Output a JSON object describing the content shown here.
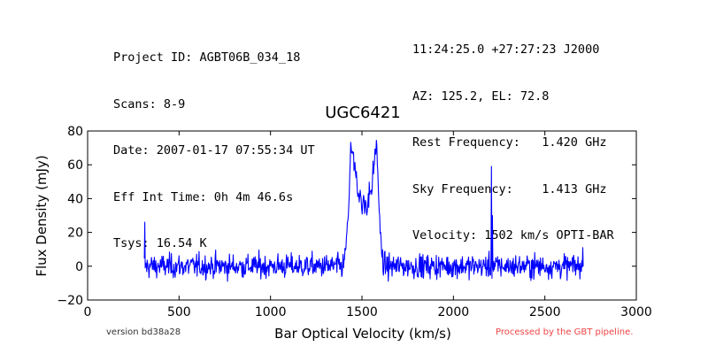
{
  "header": {
    "left": [
      "Project ID: AGBT06B_034_18",
      "Scans: 8-9",
      "Date: 2007-01-17 07:55:34 UT",
      "Eff Int Time: 0h 4m 46.6s",
      "Tsys: 16.54 K"
    ],
    "right": [
      "11:24:25.0 +27:27:23 J2000",
      "AZ: 125.2, EL: 72.8",
      "Rest Frequency:   1.420 GHz",
      "Sky Frequency:    1.413 GHz",
      "Velocity: 1502 km/s OPTI-BAR"
    ]
  },
  "footer": {
    "version": "version bd38a28",
    "pipeline": "Processed by the GBT pipeline."
  },
  "colors": {
    "series": "#0000ff",
    "pipeline_note": "#ee4444"
  },
  "chart_data": {
    "type": "line",
    "title": "UGC6421",
    "xlabel": "Bar Optical Velocity (km/s)",
    "ylabel": "Flux Density (mJy)",
    "xlim": [
      0,
      3000
    ],
    "ylim": [
      -20,
      80
    ],
    "xticks": [
      0,
      500,
      1000,
      1500,
      2000,
      2500,
      3000
    ],
    "yticks": [
      -20,
      0,
      20,
      40,
      60,
      80
    ],
    "grid": false,
    "series": [
      {
        "x_range": [
          310,
          2710
        ],
        "noise_rms_mjy": 3.5,
        "features": [
          {
            "x": 313,
            "y": 26
          },
          {
            "x": 1420,
            "y": 30
          },
          {
            "x": 1440,
            "y": 76
          },
          {
            "x": 1450,
            "y": 62
          },
          {
            "x": 1475,
            "y": 50
          },
          {
            "x": 1500,
            "y": 38
          },
          {
            "x": 1525,
            "y": 38
          },
          {
            "x": 1545,
            "y": 45
          },
          {
            "x": 1565,
            "y": 60
          },
          {
            "x": 1580,
            "y": 74
          },
          {
            "x": 1595,
            "y": 30
          },
          {
            "x": 1615,
            "y": 0
          },
          {
            "x": 2210,
            "y": 59
          },
          {
            "x": 2215,
            "y": 30
          },
          {
            "x": 2223,
            "y": 2
          },
          {
            "x": 2708,
            "y": 11
          }
        ]
      }
    ]
  }
}
